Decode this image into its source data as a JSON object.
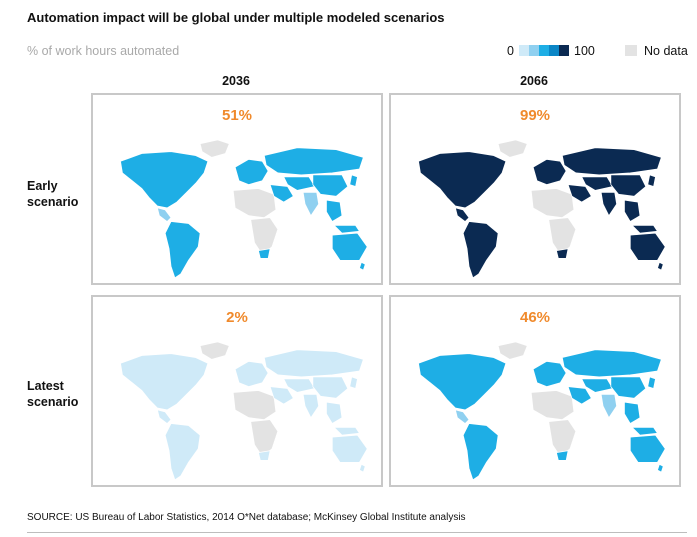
{
  "title": "Automation impact will be global under multiple modeled scenarios",
  "subtitle": "% of work hours automated",
  "legend": {
    "min_label": "0",
    "max_label": "100",
    "nodata_label": "No data",
    "scale_colors": [
      "#cfeaf8",
      "#8fd0f0",
      "#1eaee5",
      "#0b86c6",
      "#0b2a52"
    ],
    "nodata_color": "#e3e3e3"
  },
  "columns": [
    "2036",
    "2066"
  ],
  "rows": [
    {
      "line1": "Early",
      "line2": "scenario"
    },
    {
      "line1": "Latest",
      "line2": "scenario"
    }
  ],
  "panels": [
    {
      "year": "2036",
      "scenario": "Early scenario",
      "value": "51%",
      "fill": "#1eaee5",
      "fill_alt": "#8fd0f0"
    },
    {
      "year": "2066",
      "scenario": "Early scenario",
      "value": "99%",
      "fill": "#0b2a52",
      "fill_alt": "#0b2a52"
    },
    {
      "year": "2036",
      "scenario": "Latest scenario",
      "value": "2%",
      "fill": "#cfeaf8",
      "fill_alt": "#cfeaf8"
    },
    {
      "year": "2066",
      "scenario": "Latest scenario",
      "value": "46%",
      "fill": "#1eaee5",
      "fill_alt": "#8fd0f0"
    }
  ],
  "source": "SOURCE: US Bureau of Labor Statistics, 2014 O*Net database; McKinsey Global Institute analysis"
}
